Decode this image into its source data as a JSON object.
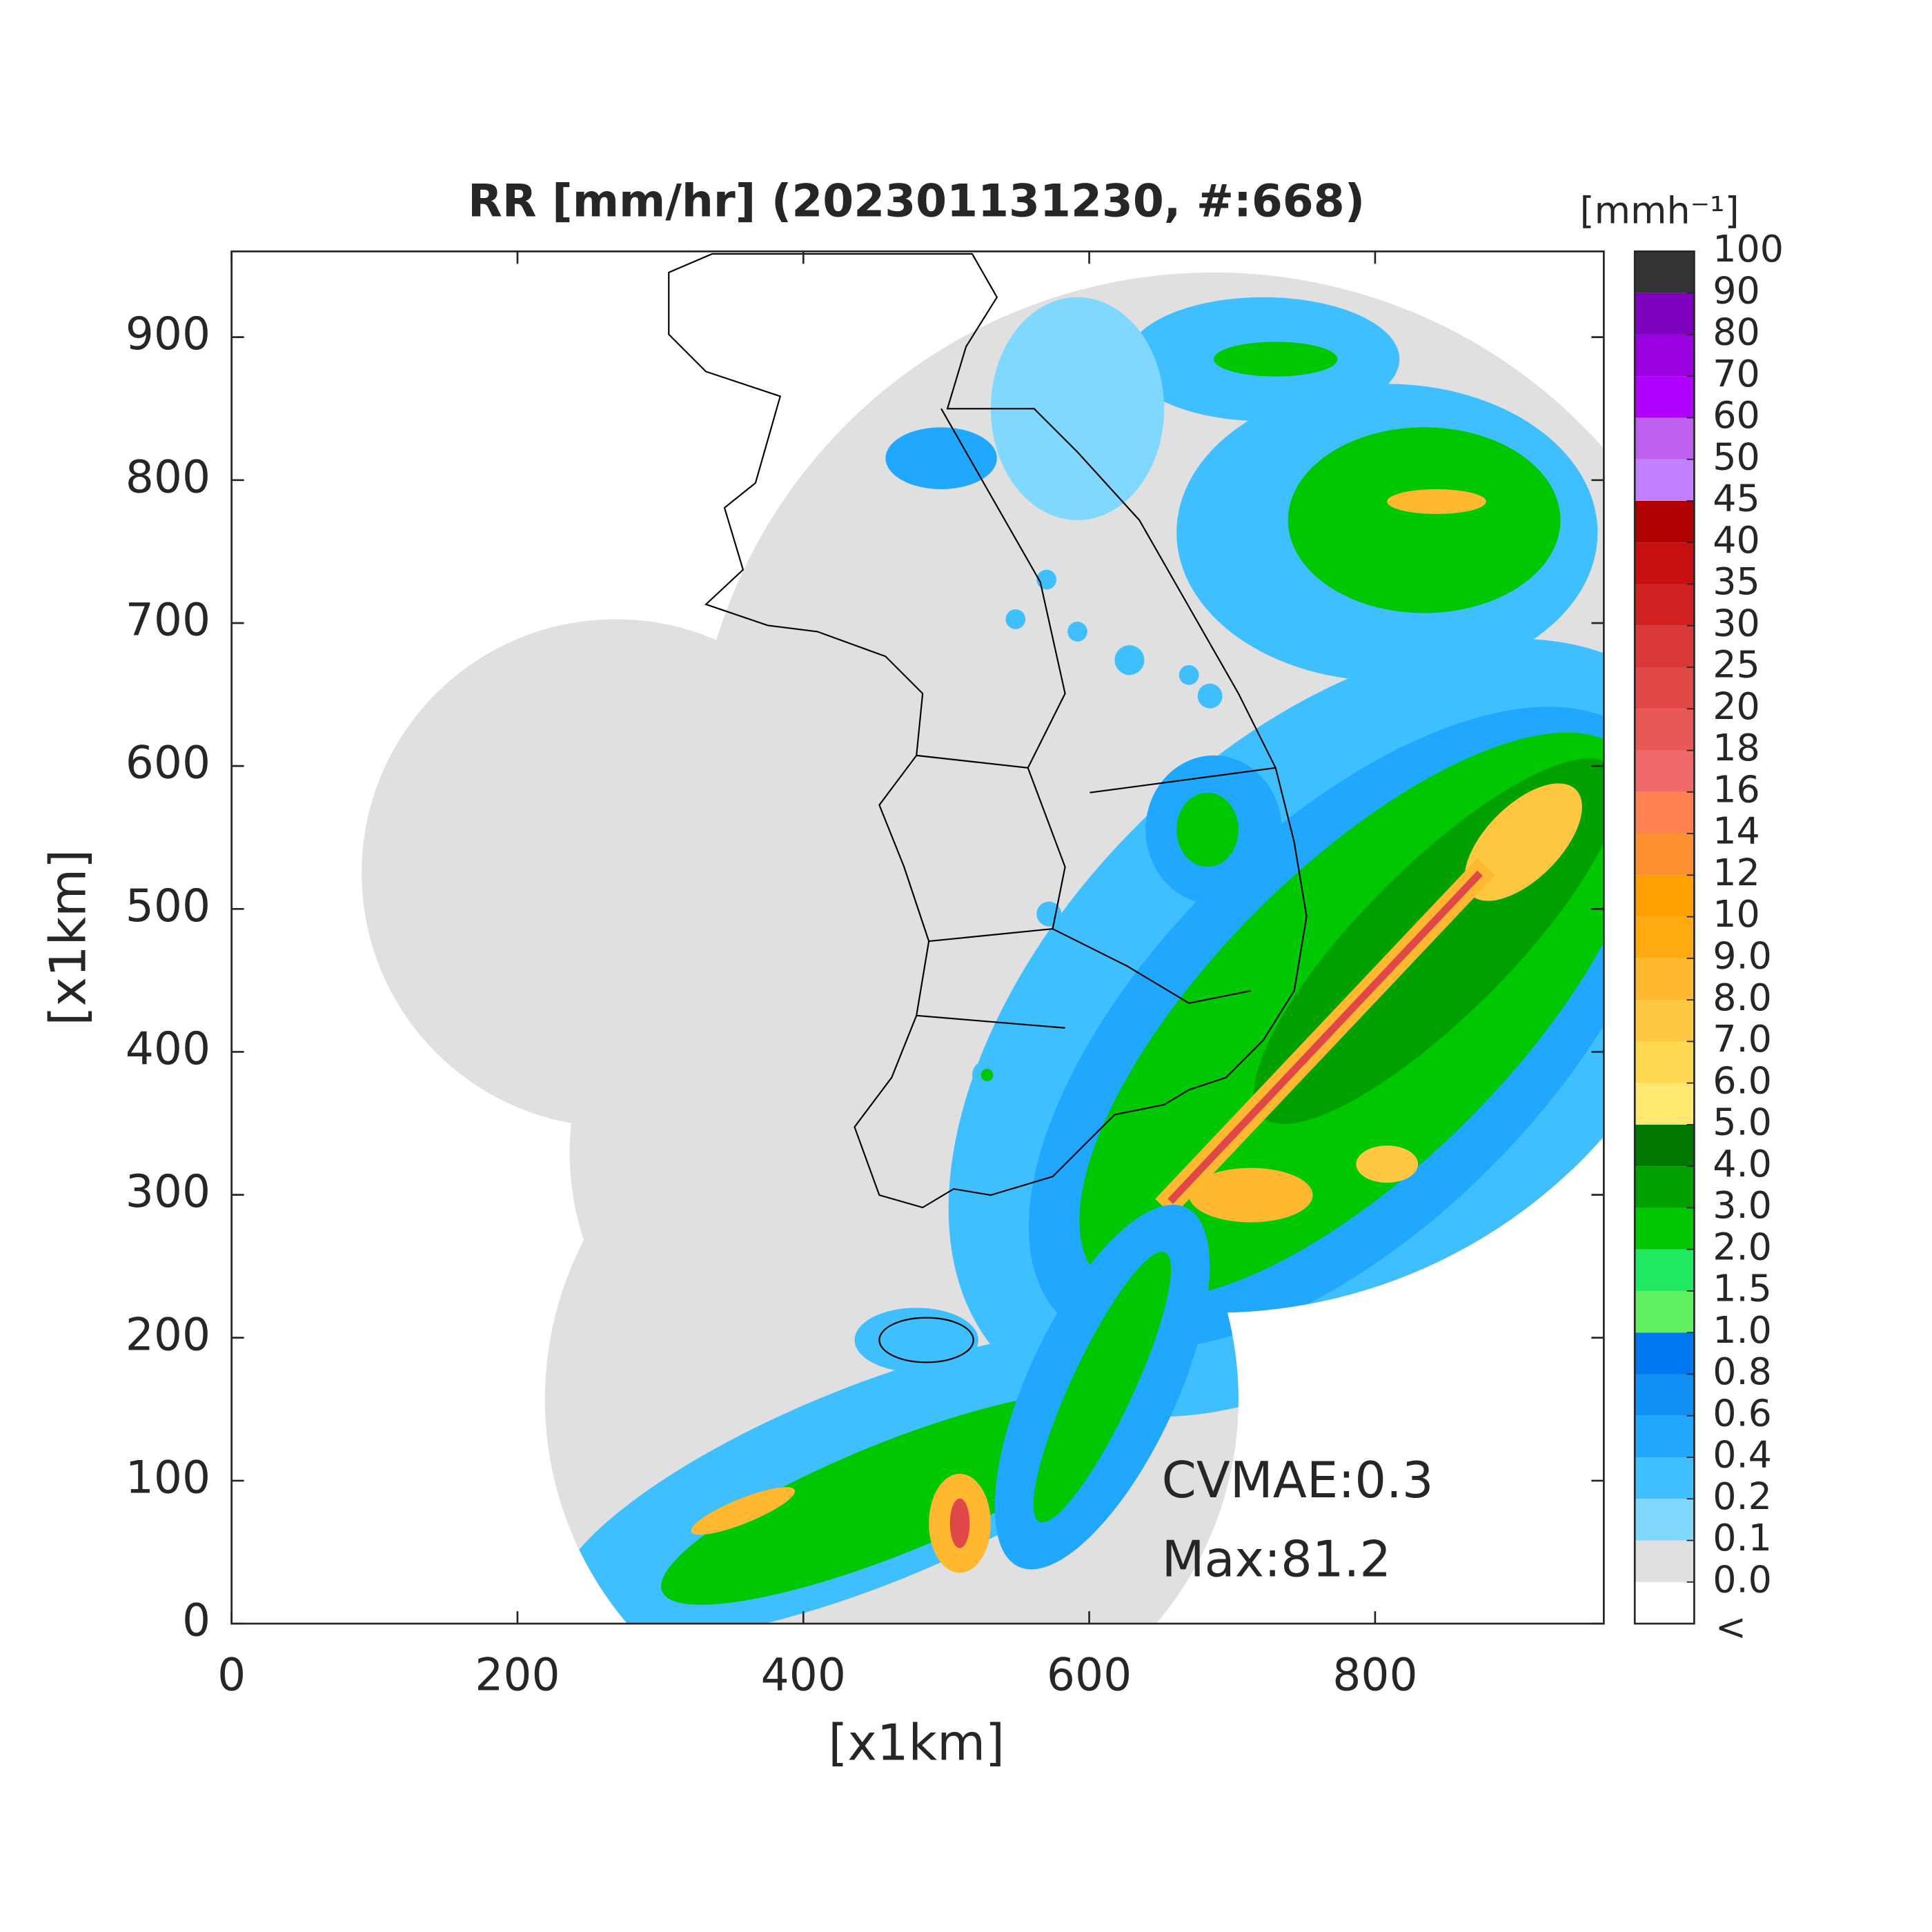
{
  "chart_data": {
    "type": "map",
    "title": "RR [mm/hr] (202301131230, #:668)",
    "x_label": "[x1km]",
    "y_label": "[x1km]",
    "xlim": [
      0,
      960
    ],
    "ylim": [
      0,
      960
    ],
    "xticks": [
      0,
      200,
      400,
      600,
      800
    ],
    "yticks": [
      0,
      100,
      200,
      300,
      400,
      500,
      600,
      700,
      800,
      900
    ],
    "annotations": [
      "CVMAE:0.3",
      "Max:81.2"
    ],
    "colorbar": {
      "label": "[mmh⁻¹]",
      "under_label": "<",
      "under_color": "#ffffff",
      "ticks": [
        {
          "value": 0,
          "label": "0.0"
        },
        0.1,
        0.2,
        0.4,
        0.6,
        0.8,
        {
          "value": 1,
          "label": "1.0"
        },
        1.5,
        {
          "value": 2,
          "label": "2.0"
        },
        {
          "value": 3,
          "label": "3.0"
        },
        {
          "value": 4,
          "label": "4.0"
        },
        {
          "value": 5,
          "label": "5.0"
        },
        {
          "value": 6,
          "label": "6.0"
        },
        {
          "value": 7,
          "label": "7.0"
        },
        {
          "value": 8,
          "label": "8.0"
        },
        {
          "value": 9,
          "label": "9.0"
        },
        10,
        12,
        14,
        16,
        18,
        20,
        25,
        30,
        35,
        40,
        45,
        50,
        60,
        70,
        80,
        90,
        100
      ],
      "colors": [
        "#e0e0e0",
        "#80d8ff",
        "#40bfff",
        "#20a8ff",
        "#1090f5",
        "#0078f0",
        "#60f060",
        "#20e860",
        "#00c800",
        "#00a000",
        "#007800",
        "#ffe870",
        "#ffd850",
        "#ffc840",
        "#ffb830",
        "#ffaa10",
        "#ffa000",
        "#ff9030",
        "#ff8050",
        "#f06868",
        "#e85858",
        "#e04848",
        "#d83838",
        "#d02020",
        "#c81010",
        "#b00000",
        "#c080ff",
        "#c060f0",
        "#b000ff",
        "#9a00e0",
        "#8000c0",
        "#333333"
      ]
    }
  }
}
